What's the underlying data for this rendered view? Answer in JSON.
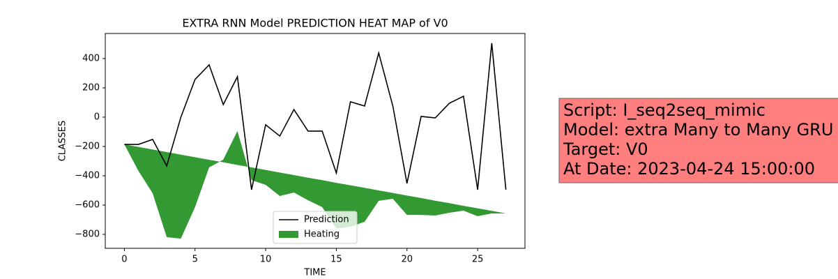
{
  "chart_data": {
    "type": "line_fill",
    "title": "EXTRA RNN Model PREDICTION HEAT MAP of V0",
    "xlabel": "TIME",
    "ylabel": "CLASSES",
    "x": [
      0,
      1,
      2,
      3,
      4,
      5,
      6,
      7,
      8,
      9,
      10,
      11,
      12,
      13,
      14,
      15,
      16,
      17,
      18,
      19,
      20,
      21,
      22,
      23,
      24,
      25,
      26,
      27
    ],
    "series": [
      {
        "name": "Prediction",
        "color": "#000000",
        "kind": "line",
        "values": [
          -186,
          -186,
          -152,
          -333,
          0,
          257,
          357,
          86,
          276,
          -495,
          -52,
          -129,
          52,
          -95,
          -95,
          -381,
          105,
          76,
          438,
          76,
          -452,
          5,
          -5,
          95,
          143,
          -495,
          505,
          -495
        ]
      },
      {
        "name": "Heating",
        "color": "#339933",
        "kind": "fill",
        "values": [
          -186,
          -203,
          -221,
          -238,
          -256,
          -273,
          -291,
          -308,
          -326,
          -343,
          -360,
          -378,
          -395,
          -413,
          -430,
          -448,
          -465,
          -482,
          -500,
          -517,
          -535,
          -552,
          -570,
          -587,
          -605,
          -622,
          -639,
          -657
        ],
        "values2": [
          -186,
          -367,
          -519,
          -819,
          -829,
          -614,
          -343,
          -290,
          -95,
          -430,
          -462,
          -538,
          -514,
          -567,
          -614,
          -760,
          -748,
          -714,
          -571,
          -557,
          -667,
          -667,
          -671,
          -652,
          -638,
          -676,
          -657,
          -657
        ]
      }
    ],
    "xlim": [
      -1.35,
      28.35
    ],
    "ylim": [
      -895,
      571
    ],
    "xticks": [
      0,
      5,
      10,
      15,
      20,
      25
    ],
    "yticks": [
      {
        "value": -800,
        "label": "−800"
      },
      {
        "value": -600,
        "label": "−600"
      },
      {
        "value": -400,
        "label": "−400"
      },
      {
        "value": -200,
        "label": "−200"
      },
      0,
      200,
      400
    ],
    "legend": "lower center",
    "annotation": {
      "lines": [
        "Script: I_seq2seq_mimic",
        "Model: extra Many to Many GRU",
        "Target: V0",
        "At Date: 2023-04-24 15:00:00"
      ],
      "background": "#ff7f7f"
    }
  }
}
